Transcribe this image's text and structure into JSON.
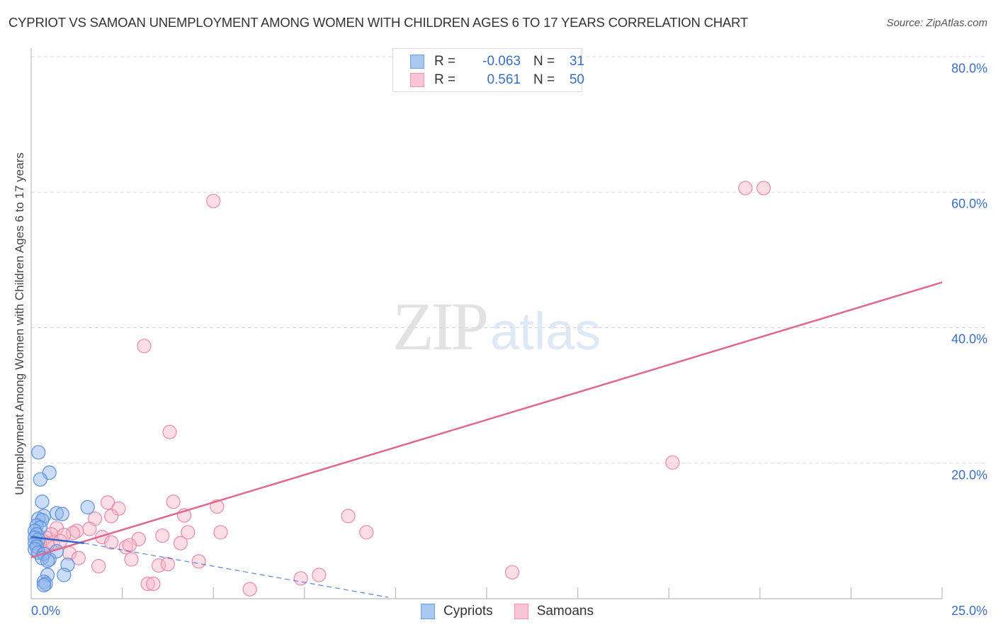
{
  "header": {
    "title": "CYPRIOT VS SAMOAN UNEMPLOYMENT AMONG WOMEN WITH CHILDREN AGES 6 TO 17 YEARS CORRELATION CHART",
    "source": "Source: ZipAtlas.com"
  },
  "watermark": {
    "zip": "ZIP",
    "atlas": "atlas"
  },
  "legend": {
    "rows": [
      {
        "series": "Cypriots",
        "r_label": "R =",
        "r_value": "-0.063",
        "n_label": "N =",
        "n_value": "31",
        "color": "#a9c8f0",
        "border": "#6f9fe0"
      },
      {
        "series": "Samoans",
        "r_label": "R =",
        "r_value": "0.561",
        "n_label": "N =",
        "n_value": "50",
        "color": "#f8c3d4",
        "border": "#ef93b1"
      }
    ]
  },
  "axes": {
    "ylabel": "Unemployment Among Women with Children Ages 6 to 17 years",
    "yticks": [
      "80.0%",
      "60.0%",
      "40.0%",
      "20.0%"
    ],
    "xtick_left": "0.0%",
    "xtick_right": "25.0%"
  },
  "bottom_legend": {
    "items": [
      {
        "label": "Cypriots",
        "color": "#a9c8f0",
        "border": "#6f9fe0"
      },
      {
        "label": "Samoans",
        "color": "#f8c3d4",
        "border": "#ef93b1"
      }
    ]
  },
  "colors": {
    "cypriot_fill": "rgba(140,180,235,0.45)",
    "cypriot_stroke": "#5b8fdb",
    "samoan_fill": "rgba(246,180,200,0.45)",
    "samoan_stroke": "#e88aaa",
    "samoan_trend": "#e0688f",
    "cypriot_trend": "#3366cc",
    "tick_label": "#3a6fc4",
    "grid": "#d8d8d8",
    "axis": "#bbbbbb"
  },
  "chart_data": {
    "type": "scatter",
    "title": "CYPRIOT VS SAMOAN UNEMPLOYMENT AMONG WOMEN WITH CHILDREN AGES 6 TO 17 YEARS CORRELATION CHART",
    "xlabel": "",
    "ylabel": "Unemployment Among Women with Children Ages 6 to 17 years",
    "xlim": [
      0,
      25
    ],
    "ylim": [
      0,
      80
    ],
    "x_unit": "%",
    "y_unit": "%",
    "grid": true,
    "legend_position": "top-center and bottom",
    "yticks": [
      20,
      40,
      60,
      80
    ],
    "x_tick_labels": [
      "0.0%",
      "25.0%"
    ],
    "series": [
      {
        "name": "Cypriots",
        "R": -0.063,
        "N": 31,
        "trend": {
          "x0": 0,
          "y0": 9.1,
          "x1": 1.45,
          "y1": 8.2,
          "dashed_to_x": 9.8,
          "dashed_to_y": 0.2
        },
        "points": [
          {
            "x": 0.2,
            "y": 21.6
          },
          {
            "x": 0.5,
            "y": 18.6
          },
          {
            "x": 0.25,
            "y": 17.6
          },
          {
            "x": 0.3,
            "y": 14.3
          },
          {
            "x": 0.35,
            "y": 12.2
          },
          {
            "x": 0.2,
            "y": 11.8
          },
          {
            "x": 0.3,
            "y": 11.6
          },
          {
            "x": 0.15,
            "y": 10.8
          },
          {
            "x": 0.25,
            "y": 10.5
          },
          {
            "x": 0.1,
            "y": 10.0
          },
          {
            "x": 0.15,
            "y": 9.5
          },
          {
            "x": 0.1,
            "y": 9.0
          },
          {
            "x": 0.2,
            "y": 8.7
          },
          {
            "x": 0.1,
            "y": 8.2
          },
          {
            "x": 0.15,
            "y": 7.7
          },
          {
            "x": 0.1,
            "y": 7.3
          },
          {
            "x": 0.2,
            "y": 6.8
          },
          {
            "x": 0.35,
            "y": 6.6
          },
          {
            "x": 0.7,
            "y": 12.6
          },
          {
            "x": 0.85,
            "y": 12.5
          },
          {
            "x": 0.7,
            "y": 7.0
          },
          {
            "x": 0.3,
            "y": 6.0
          },
          {
            "x": 0.5,
            "y": 5.8
          },
          {
            "x": 0.45,
            "y": 5.6
          },
          {
            "x": 1.0,
            "y": 5.0
          },
          {
            "x": 0.45,
            "y": 3.5
          },
          {
            "x": 0.9,
            "y": 3.5
          },
          {
            "x": 0.35,
            "y": 2.5
          },
          {
            "x": 0.4,
            "y": 2.2
          },
          {
            "x": 0.35,
            "y": 2.0
          },
          {
            "x": 1.55,
            "y": 13.5
          }
        ]
      },
      {
        "name": "Samoans",
        "R": 0.561,
        "N": 50,
        "trend": {
          "x0": 0,
          "y0": 6.1,
          "x1": 25,
          "y1": 46.7
        },
        "points": [
          {
            "x": 5.0,
            "y": 58.7
          },
          {
            "x": 19.6,
            "y": 60.6
          },
          {
            "x": 20.1,
            "y": 60.6
          },
          {
            "x": 3.1,
            "y": 37.3
          },
          {
            "x": 3.8,
            "y": 24.6
          },
          {
            "x": 17.6,
            "y": 20.1
          },
          {
            "x": 2.1,
            "y": 14.2
          },
          {
            "x": 2.4,
            "y": 13.3
          },
          {
            "x": 3.9,
            "y": 14.3
          },
          {
            "x": 5.1,
            "y": 13.6
          },
          {
            "x": 2.2,
            "y": 12.2
          },
          {
            "x": 1.75,
            "y": 11.8
          },
          {
            "x": 4.2,
            "y": 12.3
          },
          {
            "x": 8.7,
            "y": 12.2
          },
          {
            "x": 1.6,
            "y": 10.3
          },
          {
            "x": 1.25,
            "y": 10.0
          },
          {
            "x": 0.7,
            "y": 10.4
          },
          {
            "x": 1.15,
            "y": 9.7
          },
          {
            "x": 0.9,
            "y": 9.4
          },
          {
            "x": 0.55,
            "y": 9.5
          },
          {
            "x": 0.4,
            "y": 9.0
          },
          {
            "x": 0.3,
            "y": 8.6
          },
          {
            "x": 0.6,
            "y": 8.3
          },
          {
            "x": 1.95,
            "y": 9.1
          },
          {
            "x": 3.6,
            "y": 9.3
          },
          {
            "x": 4.3,
            "y": 9.8
          },
          {
            "x": 5.2,
            "y": 9.8
          },
          {
            "x": 9.2,
            "y": 9.8
          },
          {
            "x": 2.95,
            "y": 8.8
          },
          {
            "x": 2.2,
            "y": 8.3
          },
          {
            "x": 2.6,
            "y": 7.6
          },
          {
            "x": 2.7,
            "y": 7.9
          },
          {
            "x": 4.1,
            "y": 8.2
          },
          {
            "x": 0.35,
            "y": 6.8
          },
          {
            "x": 1.05,
            "y": 6.7
          },
          {
            "x": 1.3,
            "y": 6.0
          },
          {
            "x": 2.75,
            "y": 5.8
          },
          {
            "x": 4.6,
            "y": 5.5
          },
          {
            "x": 3.5,
            "y": 4.9
          },
          {
            "x": 1.85,
            "y": 4.8
          },
          {
            "x": 3.75,
            "y": 5.1
          },
          {
            "x": 13.2,
            "y": 3.9
          },
          {
            "x": 7.9,
            "y": 3.5
          },
          {
            "x": 7.4,
            "y": 3.0
          },
          {
            "x": 3.2,
            "y": 2.2
          },
          {
            "x": 3.35,
            "y": 2.2
          },
          {
            "x": 6.0,
            "y": 1.4
          },
          {
            "x": 0.2,
            "y": 7.5
          },
          {
            "x": 0.45,
            "y": 8.0
          },
          {
            "x": 0.8,
            "y": 8.5
          }
        ]
      }
    ]
  }
}
